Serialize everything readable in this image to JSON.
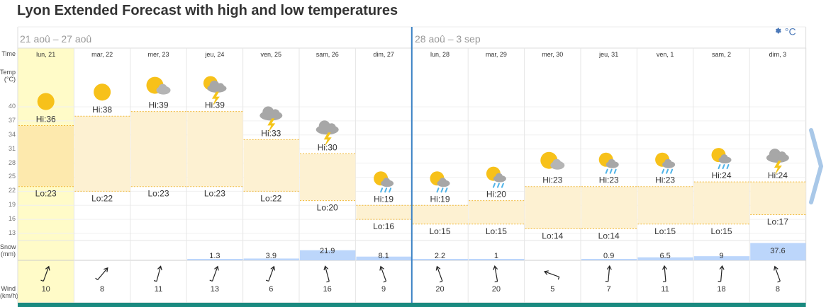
{
  "page": {
    "title": "Lyon Extended Forecast with high and low temperatures"
  },
  "date_ranges": [
    "21 aoû – 27 aoû",
    "28 aoû – 3 sep"
  ],
  "settings": {
    "icon": "gear-icon",
    "unit": "°C"
  },
  "row_labels": {
    "time": "Time",
    "temp": "Temp\n(°C)",
    "snow": "Snow\n(mm)",
    "wind": "Wind\n(km/h)"
  },
  "temp_axis": {
    "ticks": [
      40,
      37,
      34,
      31,
      28,
      25,
      22,
      19,
      16,
      13
    ],
    "ymin": 11.5,
    "ymax": 41.5
  },
  "colors": {
    "highlight": "#fffbc8",
    "band": "#fdf1d2",
    "band_highlight": "#fde9ad",
    "snow": "#bcd6fb",
    "divider": "#3b82c4",
    "footer": "#1a8a80",
    "arrow": "#a9c8e8"
  },
  "chart_data": {
    "type": "table",
    "days": [
      {
        "label": "lun, 21",
        "hi": 36,
        "lo": 23,
        "hi_label": "Hi:36",
        "lo_label": "Lo:23",
        "icon": "sun-icon",
        "snow_mm": 0,
        "snow_label": "",
        "wind_kmh": 10,
        "wind_label": "10",
        "wind_deg": 20,
        "highlight": true
      },
      {
        "label": "mar, 22",
        "hi": 38,
        "lo": 22,
        "hi_label": "Hi:38",
        "lo_label": "Lo:22",
        "icon": "sun-icon",
        "snow_mm": 0,
        "snow_label": "",
        "wind_kmh": 8,
        "wind_label": "8",
        "wind_deg": 40
      },
      {
        "label": "mer, 23",
        "hi": 39,
        "lo": 23,
        "hi_label": "Hi:39",
        "lo_label": "Lo:23",
        "icon": "sun-cloud-icon",
        "snow_mm": 0,
        "snow_label": "",
        "wind_kmh": 11,
        "wind_label": "11",
        "wind_deg": 15
      },
      {
        "label": "jeu, 24",
        "hi": 39,
        "lo": 23,
        "hi_label": "Hi:39",
        "lo_label": "Lo:23",
        "icon": "sun-storm-icon",
        "snow_mm": 1.3,
        "snow_label": "1.3",
        "wind_kmh": 13,
        "wind_label": "13",
        "wind_deg": 20
      },
      {
        "label": "ven, 25",
        "hi": 33,
        "lo": 22,
        "hi_label": "Hi:33",
        "lo_label": "Lo:22",
        "icon": "storm-icon",
        "snow_mm": 3.9,
        "snow_label": "3.9",
        "wind_kmh": 6,
        "wind_label": "6",
        "wind_deg": 20
      },
      {
        "label": "sam, 26",
        "hi": 30,
        "lo": 20,
        "hi_label": "Hi:30",
        "lo_label": "Lo:20",
        "icon": "storm-icon",
        "snow_mm": 21.9,
        "snow_label": "21.9",
        "wind_kmh": 16,
        "wind_label": "16",
        "wind_deg": -15
      },
      {
        "label": "dim, 27",
        "hi": 19,
        "lo": 16,
        "hi_label": "Hi:19",
        "lo_label": "Lo:16",
        "icon": "sun-rain-icon",
        "snow_mm": 8.1,
        "snow_label": "8.1",
        "wind_kmh": 9,
        "wind_label": "9",
        "wind_deg": -20
      },
      {
        "label": "lun, 28",
        "hi": 19,
        "lo": 15,
        "hi_label": "Hi:19",
        "lo_label": "Lo:15",
        "icon": "sun-rain-icon",
        "snow_mm": 2.2,
        "snow_label": "2.2",
        "wind_kmh": 20,
        "wind_label": "20",
        "wind_deg": -20
      },
      {
        "label": "mar, 29",
        "hi": 20,
        "lo": 15,
        "hi_label": "Hi:20",
        "lo_label": "Lo:15",
        "icon": "sun-rain-icon",
        "snow_mm": 1,
        "snow_label": "1",
        "wind_kmh": 20,
        "wind_label": "20",
        "wind_deg": -10
      },
      {
        "label": "mer, 30",
        "hi": 23,
        "lo": 14,
        "hi_label": "Hi:23",
        "lo_label": "Lo:14",
        "icon": "sun-cloud-icon",
        "snow_mm": 0,
        "snow_label": "",
        "wind_kmh": 5,
        "wind_label": "5",
        "wind_deg": -70
      },
      {
        "label": "jeu, 31",
        "hi": 23,
        "lo": 14,
        "hi_label": "Hi:23",
        "lo_label": "Lo:14",
        "icon": "sun-rain-icon",
        "snow_mm": 0.9,
        "snow_label": "0.9",
        "wind_kmh": 7,
        "wind_label": "7",
        "wind_deg": 5
      },
      {
        "label": "ven, 1",
        "hi": 23,
        "lo": 15,
        "hi_label": "Hi:23",
        "lo_label": "Lo:15",
        "icon": "sun-rain-icon",
        "snow_mm": 6.5,
        "snow_label": "6.5",
        "wind_kmh": 11,
        "wind_label": "11",
        "wind_deg": -5
      },
      {
        "label": "sam, 2",
        "hi": 24,
        "lo": 15,
        "hi_label": "Hi:24",
        "lo_label": "Lo:15",
        "icon": "sun-rain-icon",
        "snow_mm": 9,
        "snow_label": "9",
        "wind_kmh": 18,
        "wind_label": "18",
        "wind_deg": 5
      },
      {
        "label": "dim, 3",
        "hi": 24,
        "lo": 17,
        "hi_label": "Hi:24",
        "lo_label": "Lo:17",
        "icon": "storm-icon",
        "snow_mm": 37.6,
        "snow_label": "37.6",
        "wind_kmh": 8,
        "wind_label": "8",
        "wind_deg": -20
      }
    ]
  }
}
